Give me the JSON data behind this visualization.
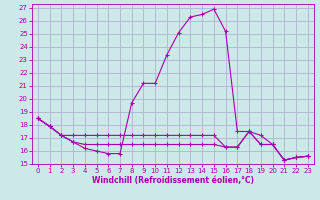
{
  "xlabel": "Windchill (Refroidissement éolien,°C)",
  "bg_color": "#cce8e8",
  "grid_color": "#aaaacc",
  "line_color": "#aa00aa",
  "xlim": [
    -0.5,
    23.5
  ],
  "ylim": [
    15,
    27.3
  ],
  "yticks": [
    15,
    16,
    17,
    18,
    19,
    20,
    21,
    22,
    23,
    24,
    25,
    26,
    27
  ],
  "xticks": [
    0,
    1,
    2,
    3,
    4,
    5,
    6,
    7,
    8,
    9,
    10,
    11,
    12,
    13,
    14,
    15,
    16,
    17,
    18,
    19,
    20,
    21,
    22,
    23
  ],
  "series1": [
    [
      0,
      18.5
    ],
    [
      1,
      17.9
    ],
    [
      2,
      17.2
    ],
    [
      3,
      16.7
    ],
    [
      4,
      16.2
    ],
    [
      5,
      16.0
    ],
    [
      6,
      15.8
    ],
    [
      7,
      15.8
    ],
    [
      8,
      19.7
    ],
    [
      9,
      21.2
    ],
    [
      10,
      21.2
    ],
    [
      11,
      23.4
    ],
    [
      12,
      25.1
    ],
    [
      13,
      26.3
    ],
    [
      14,
      26.5
    ],
    [
      15,
      26.9
    ],
    [
      16,
      25.2
    ],
    [
      17,
      17.5
    ],
    [
      18,
      17.5
    ],
    [
      19,
      17.2
    ],
    [
      20,
      16.5
    ],
    [
      21,
      15.3
    ],
    [
      22,
      15.5
    ],
    [
      23,
      15.6
    ]
  ],
  "series2": [
    [
      0,
      18.5
    ],
    [
      1,
      17.9
    ],
    [
      2,
      17.2
    ],
    [
      3,
      17.2
    ],
    [
      4,
      17.2
    ],
    [
      5,
      17.2
    ],
    [
      6,
      17.2
    ],
    [
      7,
      17.2
    ],
    [
      8,
      17.2
    ],
    [
      9,
      17.2
    ],
    [
      10,
      17.2
    ],
    [
      11,
      17.2
    ],
    [
      12,
      17.2
    ],
    [
      13,
      17.2
    ],
    [
      14,
      17.2
    ],
    [
      15,
      17.2
    ],
    [
      16,
      16.3
    ],
    [
      17,
      16.3
    ],
    [
      18,
      17.5
    ],
    [
      19,
      16.5
    ],
    [
      20,
      16.5
    ],
    [
      21,
      15.3
    ],
    [
      22,
      15.5
    ],
    [
      23,
      15.6
    ]
  ],
  "series3": [
    [
      0,
      18.5
    ],
    [
      1,
      17.9
    ],
    [
      2,
      17.2
    ],
    [
      3,
      16.7
    ],
    [
      4,
      16.5
    ],
    [
      5,
      16.5
    ],
    [
      6,
      16.5
    ],
    [
      7,
      16.5
    ],
    [
      8,
      16.5
    ],
    [
      9,
      16.5
    ],
    [
      10,
      16.5
    ],
    [
      11,
      16.5
    ],
    [
      12,
      16.5
    ],
    [
      13,
      16.5
    ],
    [
      14,
      16.5
    ],
    [
      15,
      16.5
    ],
    [
      16,
      16.3
    ],
    [
      17,
      16.3
    ],
    [
      18,
      17.5
    ],
    [
      19,
      16.5
    ],
    [
      20,
      16.5
    ],
    [
      21,
      15.3
    ],
    [
      22,
      15.5
    ],
    [
      23,
      15.6
    ]
  ]
}
